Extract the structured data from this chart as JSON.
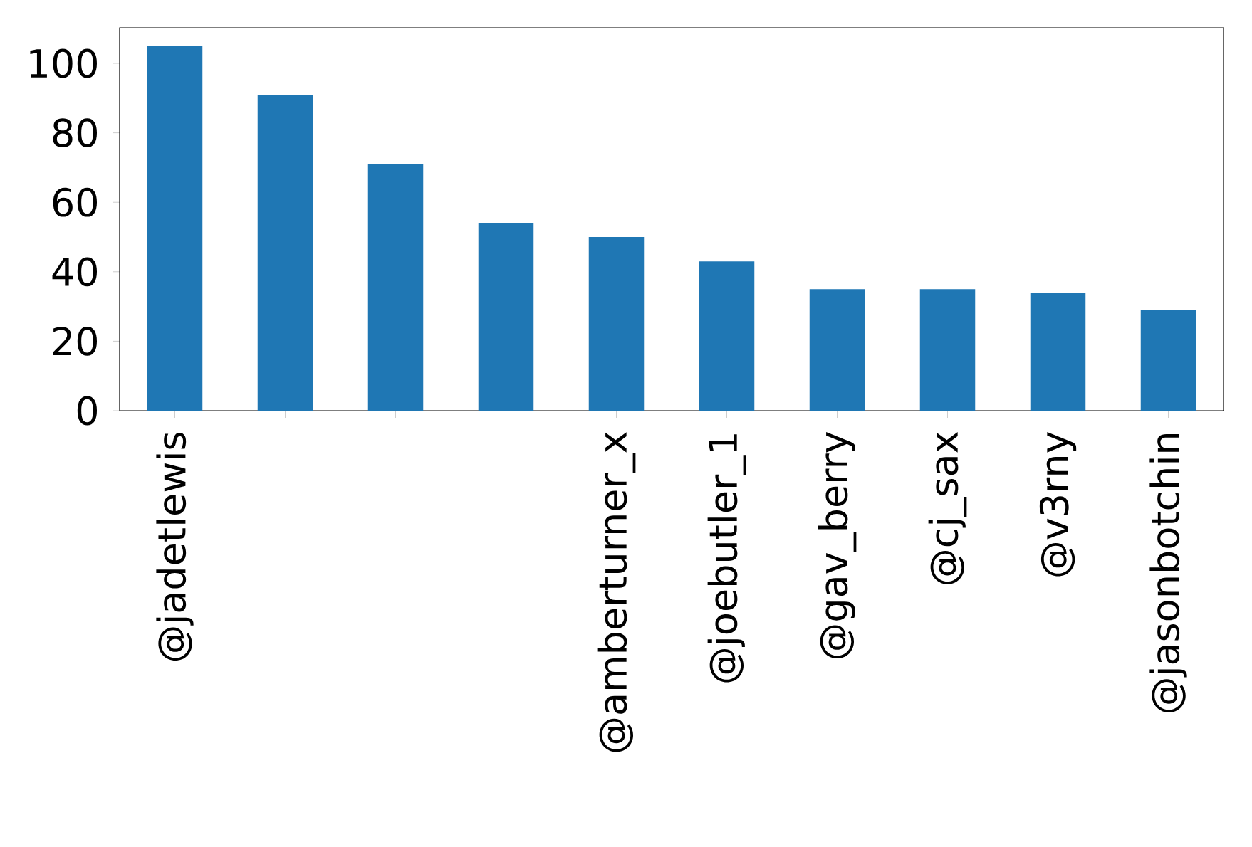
{
  "chart_data": {
    "type": "bar",
    "categories": [
      "@jadetlewis",
      null,
      null,
      null,
      "@amberturner_x",
      "@joebutler_1",
      "@gav_berry",
      "@cj_sax",
      "@v3rny",
      "@jasonbotchin"
    ],
    "values": [
      105,
      91,
      71,
      54,
      50,
      43,
      35,
      35,
      34,
      29
    ],
    "color": "#1f77b4",
    "ylim": [
      0,
      110.25
    ],
    "yticks": [
      0,
      20,
      40,
      60,
      80,
      100
    ],
    "grid": false
  }
}
